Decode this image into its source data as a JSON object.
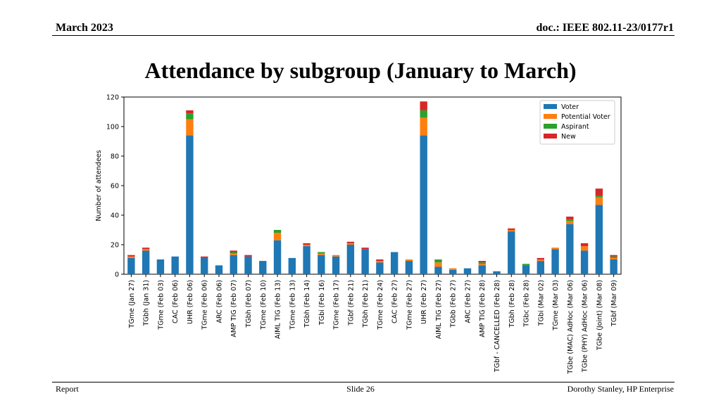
{
  "header": {
    "left": "March 2023",
    "right": "doc.: IEEE 802.11-23/0177r1"
  },
  "slide": {
    "title": "Attendance by subgroup (January to March)"
  },
  "footer": {
    "left": "Report",
    "center": "Slide 26",
    "right": "Dorothy Stanley, HP Enterprise"
  },
  "chart_data": {
    "type": "bar",
    "stacked": true,
    "title": "",
    "xlabel": "",
    "ylabel": "Number of attendees",
    "ylim": [
      0,
      120
    ],
    "yticks": [
      0,
      20,
      40,
      60,
      80,
      100,
      120
    ],
    "grid": false,
    "legend_position": "top-right",
    "categories": [
      "TGme (Jan 27)",
      "TGbh (Jan 31)",
      "TGme (Feb 03)",
      "CAC (Feb 06)",
      "UHR (Feb 06)",
      "TGme (Feb 06)",
      "ARC (Feb 06)",
      "AMP TIG (Feb 07)",
      "TGbh (Feb 07)",
      "TGme (Feb 10)",
      "AIML TIG (Feb 13)",
      "TGme (Feb 13)",
      "TGbh (Feb 14)",
      "TGbi (Feb 16)",
      "TGme (Feb 17)",
      "TGbf (Feb 21)",
      "TGbh (Feb 21)",
      "TGme (Feb 24)",
      "CAC (Feb 27)",
      "TGme (Feb 27)",
      "UHR (Feb 27)",
      "AIML TIG (Feb 27)",
      "TGbb (Feb 27)",
      "ARC (Feb 27)",
      "AMP TIG (Feb 28)",
      "TGbf - CANCELLED (Feb 28)",
      "TGbh (Feb 28)",
      "TGbc (Feb 28)",
      "TGbi (Mar 02)",
      "TGme (Mar 03)",
      "TGbe (MAC) AdHoc (Mar 06)",
      "TGbe (PHY) AdHoc (Mar 06)",
      "TGbe (Joint) (Mar 08)",
      "TGbf (Mar 09)"
    ],
    "series": [
      {
        "name": "Voter",
        "color": "#1f77b4",
        "values": [
          11,
          16,
          10,
          12,
          94,
          11,
          6,
          13,
          12,
          9,
          23,
          11,
          19,
          13,
          12,
          20,
          17,
          8,
          15,
          9,
          94,
          5,
          3,
          4,
          6,
          2,
          29,
          6,
          9,
          17,
          34,
          16,
          47,
          10
        ]
      },
      {
        "name": "Potential Voter",
        "color": "#ff7f0e",
        "values": [
          1,
          1,
          0,
          0,
          11,
          0,
          0,
          1,
          0,
          0,
          5,
          0,
          1,
          1,
          1,
          1,
          0,
          1,
          0,
          1,
          12,
          3,
          1,
          0,
          1,
          0,
          1,
          0,
          1,
          1,
          2,
          3,
          5,
          1
        ]
      },
      {
        "name": "Aspirant",
        "color": "#2ca02c",
        "values": [
          0,
          0,
          0,
          0,
          4,
          0,
          0,
          1,
          0,
          0,
          2,
          0,
          0,
          1,
          0,
          0,
          0,
          0,
          0,
          0,
          5,
          2,
          0,
          0,
          1,
          0,
          0,
          1,
          0,
          0,
          1,
          0,
          1,
          1
        ]
      },
      {
        "name": "New",
        "color": "#d62728",
        "values": [
          1,
          1,
          0,
          0,
          2,
          1,
          0,
          1,
          1,
          0,
          0,
          0,
          1,
          0,
          0,
          1,
          1,
          1,
          0,
          0,
          6,
          0,
          0,
          0,
          1,
          0,
          1,
          0,
          1,
          0,
          2,
          2,
          5,
          1
        ]
      }
    ]
  }
}
